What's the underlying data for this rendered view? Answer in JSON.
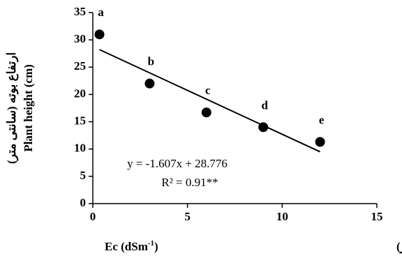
{
  "chart_data": {
    "type": "scatter",
    "x": [
      0.35,
      3,
      6,
      9,
      12
    ],
    "values": [
      31,
      22,
      16.7,
      14,
      11.3
    ],
    "point_labels": [
      "a",
      "b",
      "c",
      "d",
      "e"
    ],
    "color": "#000000",
    "xlim": [
      0,
      15
    ],
    "xticks": [
      0,
      5,
      10,
      15
    ],
    "ylim": [
      0,
      35
    ],
    "yticks": [
      0,
      5,
      10,
      15,
      20,
      25,
      30,
      35
    ],
    "grid": false,
    "x_label": {
      "text": "Ec (dSm",
      "superscript": "-1",
      "suffix": ")",
      "persian": "هدایت الکتریکی (دسی زیمنس بر متر)"
    },
    "y_label": {
      "text": "Plant height (cm)",
      "persian": "ارتفاع بوته (سانتی متر)"
    },
    "trendline": {
      "equation": "y = -1.607x + 28.776",
      "r2": "R² = 0.91**",
      "slope": -1.607,
      "intercept": 28.776
    }
  }
}
